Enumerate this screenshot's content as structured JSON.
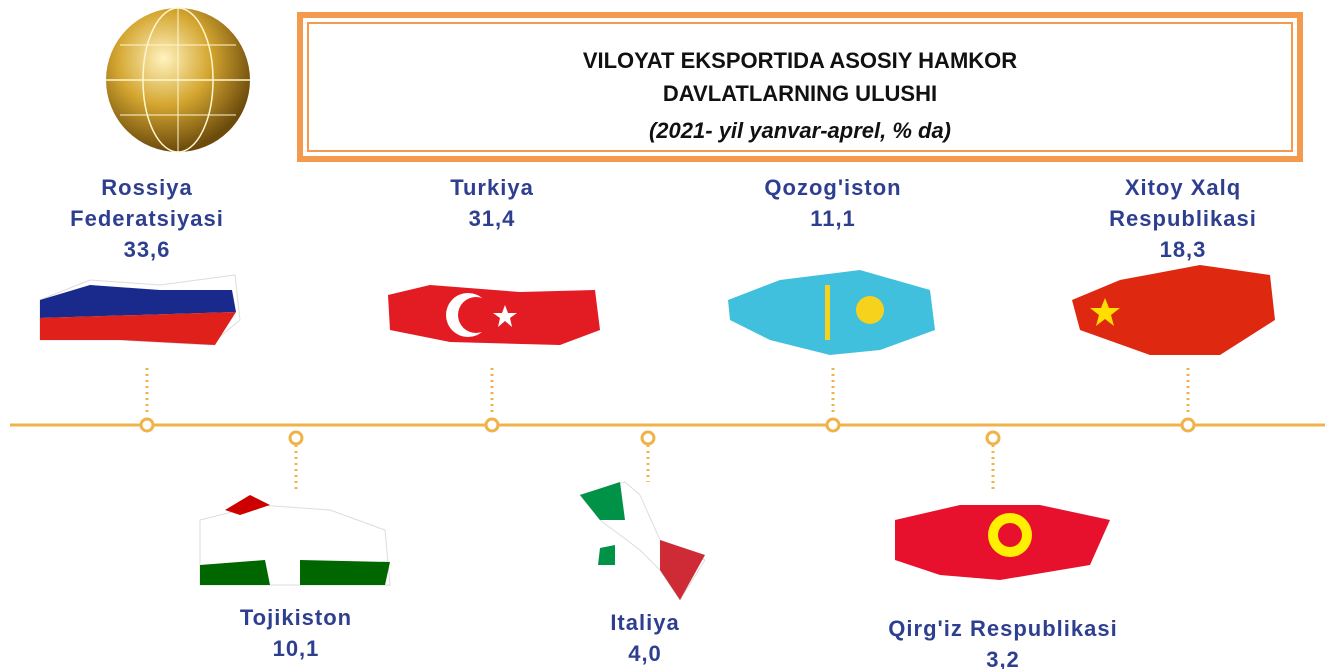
{
  "header": {
    "title_line1": "VILOYAT EKSPORTIDA ASOSIY HAMKOR",
    "title_line2": "DAVLATLARNING ULUSHI",
    "subtitle": "(2021- yil yanvar-aprel, % da)"
  },
  "countries": [
    {
      "name": "Rossiya Federatsiyasi",
      "value": "33,6"
    },
    {
      "name": "Tojikiston",
      "value": "10,1"
    },
    {
      "name": "Turkiya",
      "value": "31,4"
    },
    {
      "name": "Italiya",
      "value": "4,0"
    },
    {
      "name": "Qozog'iston",
      "value": "11,1"
    },
    {
      "name": "Qirg'iz Respublikasi",
      "value": "3,2"
    },
    {
      "name": "Xitoy Xalq Respublikasi",
      "value": "18,3"
    }
  ]
}
